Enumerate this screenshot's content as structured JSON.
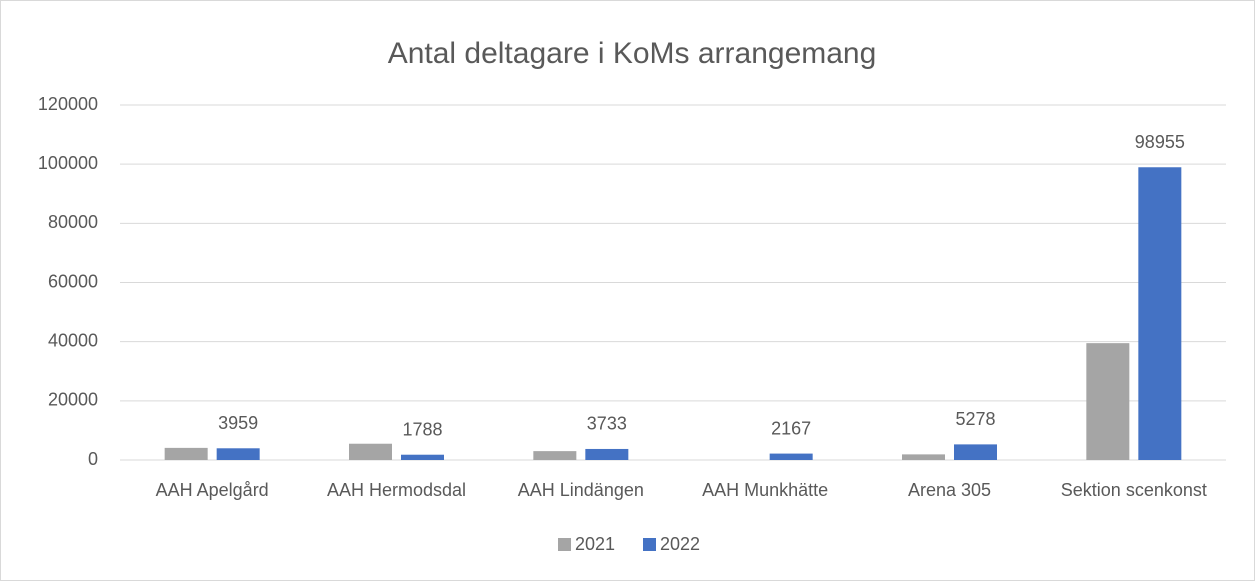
{
  "chart_data": {
    "type": "bar",
    "title": "Antal deltagare i KoMs arrangemang",
    "categories": [
      "AAH Apelgård",
      "AAH Hermodsdal",
      "AAH Lindängen",
      "AAH Munkhätte",
      "Arena 305",
      "Sektion scenkonst"
    ],
    "series": [
      {
        "name": "2021",
        "color": "#a5a5a5",
        "values": [
          4100,
          5500,
          3000,
          0,
          1900,
          39500
        ],
        "data_labels": false
      },
      {
        "name": "2022",
        "color": "#4472c4",
        "values": [
          3959,
          1788,
          3733,
          2167,
          5278,
          98955
        ],
        "data_labels": true
      }
    ],
    "ylim": [
      0,
      120000
    ],
    "yticks": [
      0,
      20000,
      40000,
      60000,
      80000,
      100000,
      120000
    ],
    "grid": true,
    "legend": "bottom"
  }
}
